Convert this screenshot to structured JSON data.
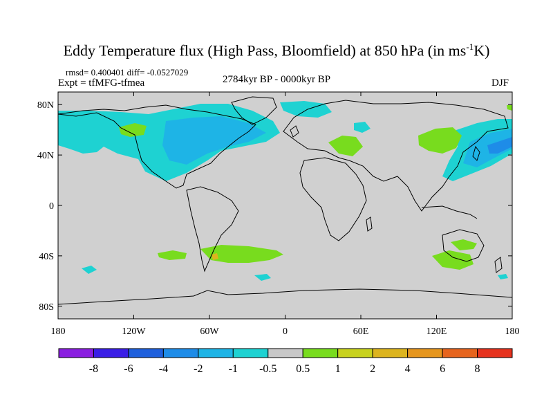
{
  "title": {
    "main": "Eddy Temperature flux (High Pass, Bloomfield) at 850 hPa (in ms",
    "unit_sup": "-1",
    "unit_end": "K)"
  },
  "stats": "rmsd= 0.400401 diff= -0.0527029",
  "experiment": "Expt = tfMFG-tfmea",
  "period": "2784kyr BP - 0000kyr BP",
  "season": "DJF",
  "map": {
    "background": "#d0d0d0",
    "lon_ticks": [
      "180",
      "120W",
      "60W",
      "0",
      "60E",
      "120E",
      "180"
    ],
    "lat_ticks": [
      "80N",
      "40N",
      "0",
      "40S",
      "80S"
    ]
  },
  "colorbar": {
    "colors": [
      "#8a1ee0",
      "#3a1ee6",
      "#1e5fdc",
      "#1e8ce8",
      "#1eb4e6",
      "#1ed2d2",
      "#c8c8c8",
      "#78dc1e",
      "#c8d21e",
      "#dcb41e",
      "#e6961e",
      "#e6641e",
      "#e6321e"
    ],
    "labels": [
      "-8",
      "-6",
      "-4",
      "-2",
      "-1",
      "-0.5",
      "0.5",
      "1",
      "2",
      "4",
      "6",
      "8"
    ]
  },
  "regions": {
    "colors": {
      "cyan": "#1ed2d2",
      "blue": "#1eb4e6",
      "green": "#78dc1e",
      "orange": "#dcb41e"
    }
  }
}
